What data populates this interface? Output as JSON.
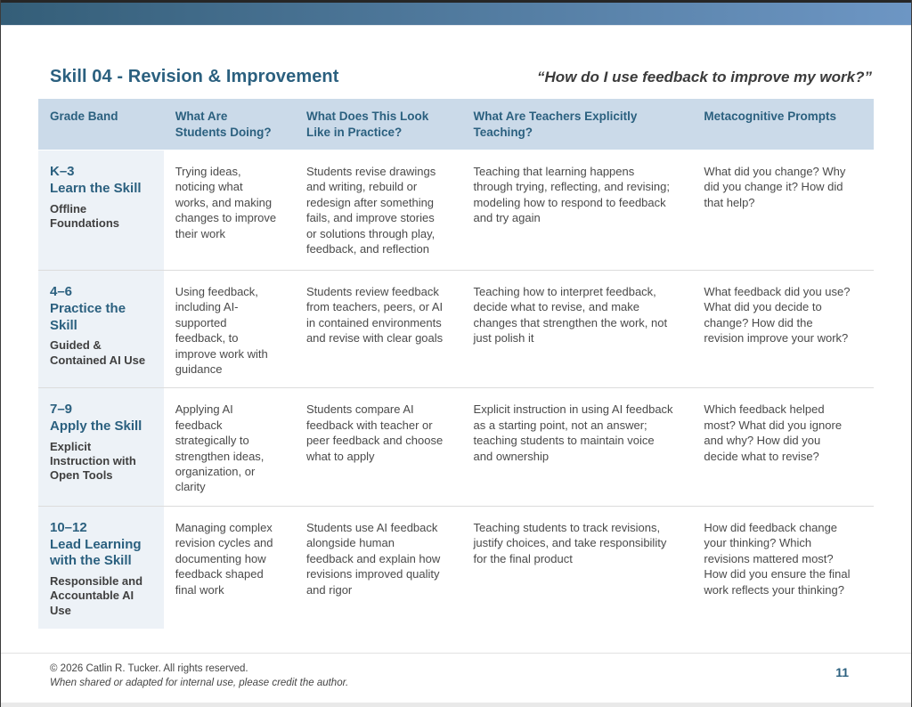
{
  "page": {
    "title": "Skill 04 - Revision & Improvement",
    "quote": "“How do I use feedback to improve my work?”",
    "page_number": "11",
    "footer_line1": "© 2026 Catlin R. Tucker. All rights reserved.",
    "footer_line2": "When shared or adapted for internal use, please credit the author."
  },
  "colors": {
    "accent_teal": "#2b607f",
    "header_bg": "#cbdae9",
    "grade_column_bg": "#edf2f7",
    "top_bar_gradient_left": "#345e78",
    "top_bar_gradient_right": "#6d96c4",
    "body_text": "#4a4a4a"
  },
  "table": {
    "headers": [
      "Grade Band",
      "What Are Students Doing?",
      "What Does This Look Like in Practice?",
      "What Are Teachers Explicitly Teaching?",
      "Metacognitive Prompts"
    ],
    "rows": [
      {
        "grade": "K–3",
        "skill": "Learn the Skill",
        "mode": "Offline Foundations",
        "doing": "Trying ideas, noticing what works, and making changes to improve their work",
        "practice": "Students revise drawings and writing, rebuild or redesign after something fails, and improve stories or solutions through play, feedback, and reflection",
        "teaching": "Teaching that learning happens through trying, reflecting, and revising; modeling how to respond to feedback and try again",
        "prompts": "What did you change? Why did you change it? How did that help?"
      },
      {
        "grade": "4–6",
        "skill": "Practice the Skill",
        "mode": "Guided & Contained AI Use",
        "doing": "Using feedback, including AI-supported feedback, to improve work with guidance",
        "practice": "Students review feedback from teachers, peers, or AI in contained environments and revise with clear goals",
        "teaching": "Teaching how to interpret feedback, decide what to revise, and make changes that strengthen the work, not just polish it",
        "prompts": "What feedback did you use? What did you decide to change? How did the revision improve your work?"
      },
      {
        "grade": "7–9",
        "skill": "Apply the Skill",
        "mode": "Explicit Instruction with Open Tools",
        "doing": "Applying AI feedback strategically to strengthen ideas, organization, or clarity",
        "practice": "Students compare AI feedback with teacher or peer feedback and choose what to apply",
        "teaching": "Explicit instruction in using AI feedback as a starting point, not an answer; teaching students to maintain voice and ownership",
        "prompts": "Which feedback helped most? What did you ignore and why? How did you decide what to revise?"
      },
      {
        "grade": "10–12",
        "skill": "Lead Learning with the Skill",
        "mode": "Responsible and Accountable AI Use",
        "doing": "Managing complex revision cycles and documenting how feedback shaped final work",
        "practice": "Students use AI feedback alongside human feedback and explain how revisions improved quality and rigor",
        "teaching": "Teaching students to track revisions, justify choices, and take responsibility for the final product",
        "prompts": "How did feedback change your thinking? Which revisions mattered most? How did you ensure the final work reflects your thinking?"
      }
    ]
  }
}
